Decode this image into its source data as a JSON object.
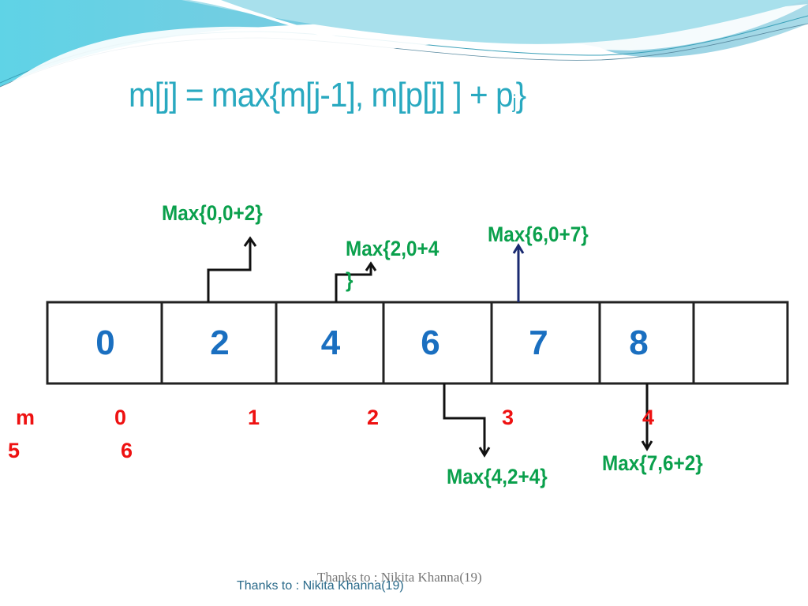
{
  "slide": {
    "title_main": "m[j] = max{m[j-1], m[p[j] ] + p",
    "title_sub": "j",
    "title_end": "}",
    "accent_color": "#29a9c0"
  },
  "array": {
    "cells": [
      "0",
      "2",
      "4",
      "6",
      "7",
      "8",
      ""
    ]
  },
  "annotations": {
    "max1": "Max{0,0+2}",
    "max2_line1": "Max{2,0+4",
    "max2_line2": "}",
    "max3": "Max{6,0+7}",
    "max4": "Max{4,2+4}",
    "max5": "Max{7,6+2}"
  },
  "index_labels": {
    "m": "m",
    "i0": "0",
    "i1": "1",
    "i2": "2",
    "i3": "3",
    "i4": "4",
    "i5": "5",
    "i6": "6"
  },
  "footer": {
    "credit_serif": "Thanks to : Nikita Khanna(19)",
    "credit_sans": "Thanks to : Nikita Khanna(19)"
  }
}
